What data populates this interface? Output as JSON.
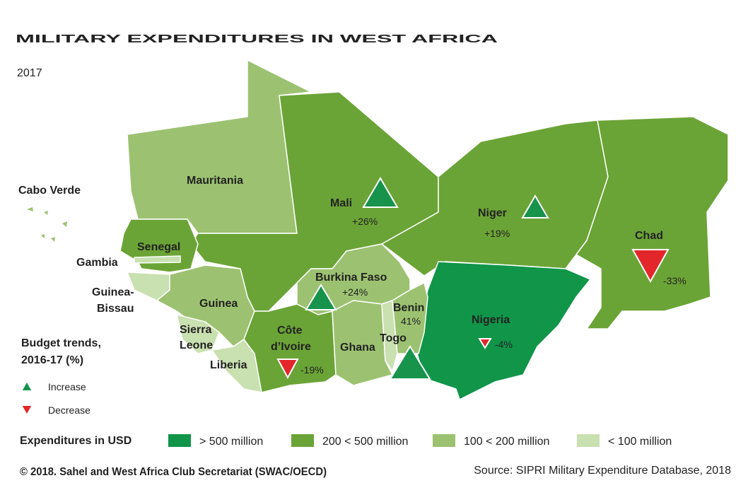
{
  "header": {
    "title": "MILITARY EXPENDITURES IN WEST AFRICA",
    "subtitle": "2017"
  },
  "countries": [
    {
      "name_lines": [
        "Mauritania"
      ]
    },
    {
      "name_lines": [
        "Mali"
      ],
      "trend": "+26%"
    },
    {
      "name_lines": [
        "Niger"
      ],
      "trend": "+19%"
    },
    {
      "name_lines": [
        "Chad"
      ],
      "trend": "-33%"
    },
    {
      "name_lines": [
        "Nigeria"
      ],
      "trend": "-4%"
    },
    {
      "name_lines": [
        "Senegal"
      ]
    },
    {
      "name_lines": [
        "Gambia"
      ]
    },
    {
      "name_lines": [
        "Guinea-",
        "Bissau"
      ]
    },
    {
      "name_lines": [
        "Guinea"
      ]
    },
    {
      "name_lines": [
        "Sierra",
        "Leone"
      ]
    },
    {
      "name_lines": [
        "Liberia"
      ]
    },
    {
      "name_lines": [
        "Côte",
        "d’Ivoire"
      ],
      "trend": "-19%"
    },
    {
      "name_lines": [
        "Burkina Faso"
      ],
      "trend": "+24%"
    },
    {
      "name_lines": [
        "Ghana"
      ]
    },
    {
      "name_lines": [
        "Togo"
      ]
    },
    {
      "name_lines": [
        "Benin"
      ],
      "trend": "41%"
    },
    {
      "name_lines": [
        "Cabo Verde"
      ]
    }
  ],
  "budget_legend": {
    "title_lines": [
      "Budget trends,",
      "2016-17 (%)"
    ],
    "items": [
      "Increase",
      "Decrease"
    ]
  },
  "expenditure_legend": {
    "title": "Expenditures in USD",
    "items": [
      "> 500 million",
      "200 < 500 million",
      "100 < 200 million",
      "< 100 million"
    ]
  },
  "footer": {
    "copyright": "© 2018. Sahel and West Africa Club Secretariat (SWAC/OECD)",
    "source": "Source: SIPRI Military Expenditure Database, 2018"
  }
}
